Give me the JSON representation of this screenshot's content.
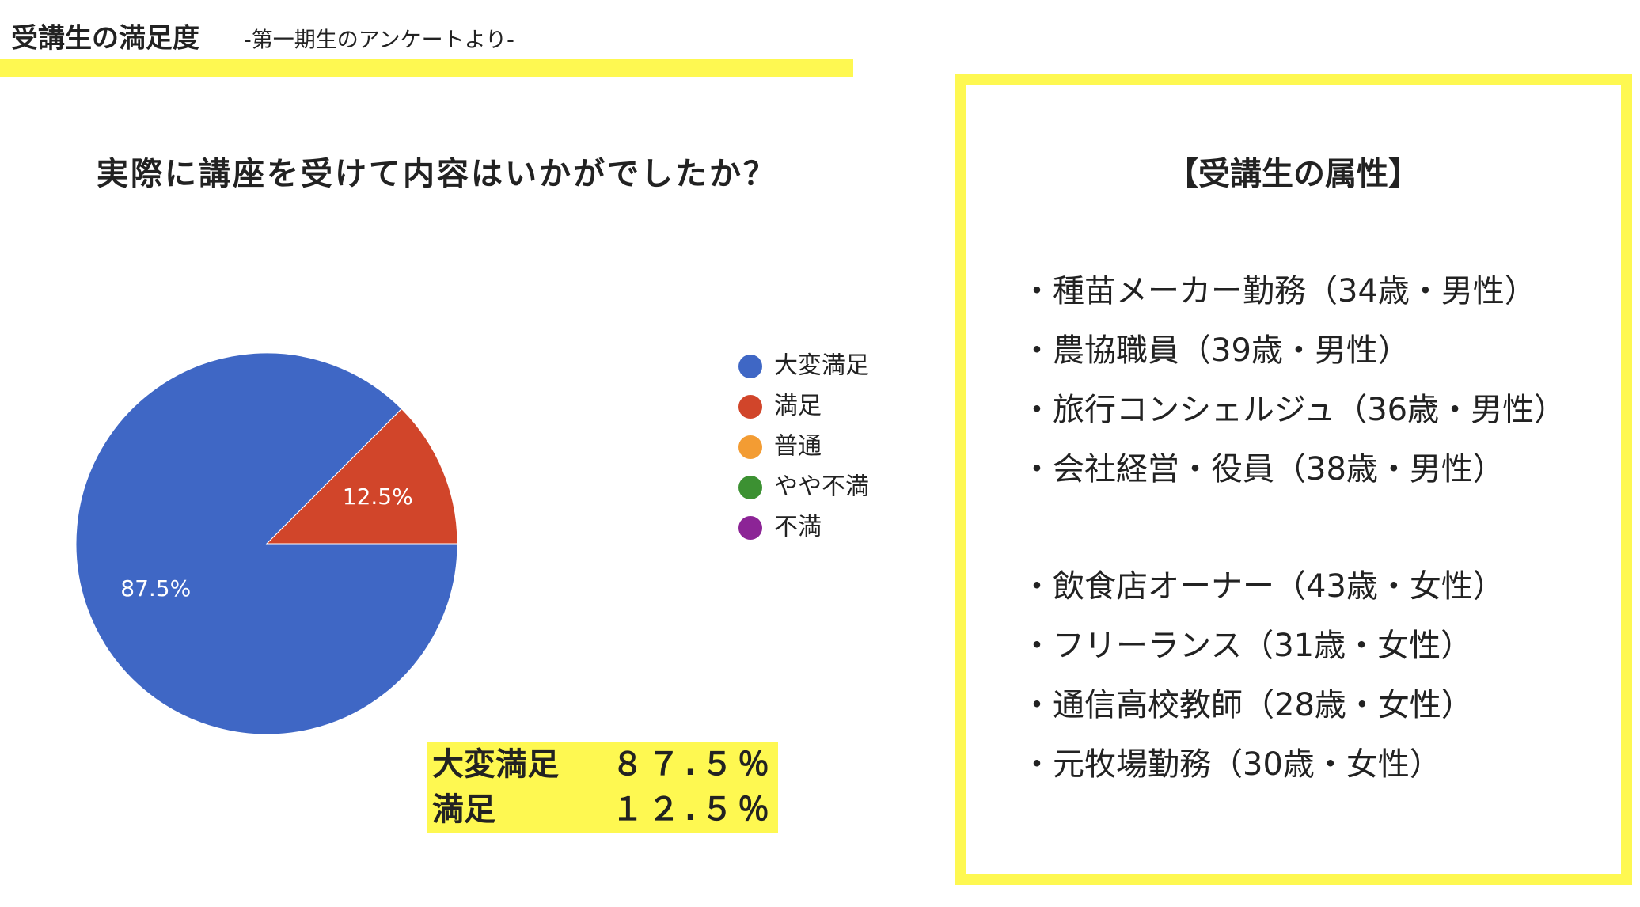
{
  "header": {
    "title": "受講生の満足度",
    "subtitle": "-第一期生のアンケートより-"
  },
  "chart_data": {
    "type": "pie",
    "title": "実際に講座を受けて内容はいかがでしたか？",
    "categories": [
      "大変満足",
      "満足",
      "普通",
      "やや不満",
      "不満"
    ],
    "values": [
      87.5,
      12.5,
      0,
      0,
      0
    ],
    "value_labels": [
      "87.5%",
      "12.5%",
      null,
      null,
      null
    ],
    "colors": [
      "#3f67c5",
      "#d1452a",
      "#f39c33",
      "#3c9132",
      "#8c2496"
    ],
    "legend": "right"
  },
  "summary": {
    "rows": [
      [
        "大変満足",
        "８７.５％"
      ],
      [
        "満足",
        "１２.５％"
      ]
    ]
  },
  "attributes": {
    "title": "【受講生の属性】",
    "groups": [
      [
        "・種苗メーカー勤務（34歳・男性）",
        "・農協職員（39歳・男性）",
        "・旅行コンシェルジュ（36歳・男性）",
        "・会社経営・役員（38歳・男性）"
      ],
      [
        "・飲食店オーナー（43歳・女性）",
        "・フリーランス（31歳・女性）",
        "・通信高校教師（28歳・女性）",
        "・元牧場勤務（30歳・女性）"
      ]
    ]
  }
}
